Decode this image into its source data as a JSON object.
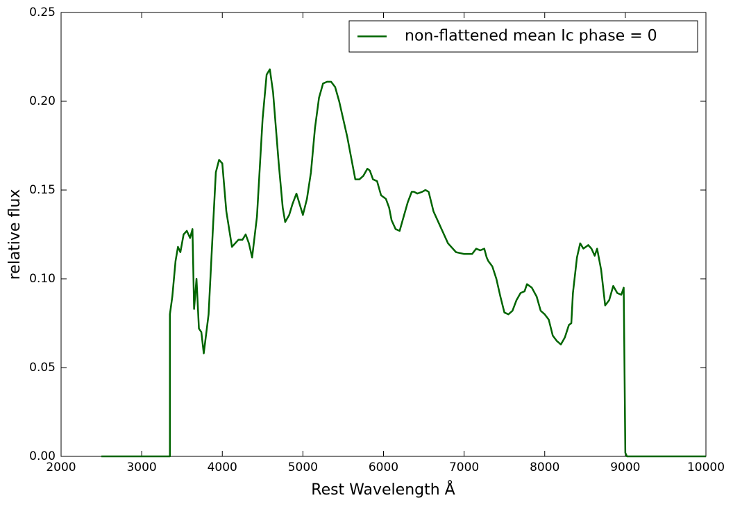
{
  "chart_data": {
    "type": "line",
    "xlabel": "Rest Wavelength Å",
    "ylabel": "relative flux",
    "xlim": [
      2000,
      10000
    ],
    "xticks": [
      2000,
      3000,
      4000,
      5000,
      6000,
      7000,
      8000,
      9000,
      10000
    ],
    "ylim": [
      0,
      0.25
    ],
    "yticks": [
      {
        "value": 0,
        "label": "0.00"
      },
      0.05,
      {
        "value": 0.1,
        "label": "0.10"
      },
      0.15,
      {
        "value": 0.2,
        "label": "0.20"
      },
      0.25
    ],
    "grid": false,
    "legend": "upper right",
    "x": [
      2500,
      3350,
      3350,
      3380,
      3420,
      3450,
      3480,
      3520,
      3560,
      3600,
      3630,
      3650,
      3680,
      3710,
      3740,
      3770,
      3830,
      3880,
      3920,
      3960,
      4000,
      4050,
      4120,
      4160,
      4200,
      4250,
      4290,
      4330,
      4370,
      4430,
      4500,
      4550,
      4590,
      4630,
      4700,
      4750,
      4780,
      4830,
      4870,
      4920,
      4960,
      5000,
      5050,
      5100,
      5150,
      5200,
      5250,
      5300,
      5350,
      5400,
      5450,
      5500,
      5550,
      5600,
      5650,
      5700,
      5750,
      5800,
      5830,
      5870,
      5920,
      5970,
      6030,
      6070,
      6100,
      6150,
      6200,
      6250,
      6300,
      6350,
      6380,
      6420,
      6480,
      6520,
      6560,
      6620,
      6700,
      6800,
      6900,
      7000,
      7100,
      7150,
      7200,
      7250,
      7280,
      7300,
      7350,
      7400,
      7450,
      7500,
      7550,
      7600,
      7650,
      7700,
      7750,
      7780,
      7840,
      7900,
      7950,
      8000,
      8050,
      8100,
      8150,
      8200,
      8250,
      8300,
      8330,
      8350,
      8400,
      8440,
      8480,
      8540,
      8580,
      8620,
      8650,
      8700,
      8750,
      8800,
      8850,
      8900,
      8950,
      8980,
      9000,
      9020,
      10000
    ],
    "series": [
      {
        "name": "non-flattened mean Ic phase = 0",
        "color": "#006400",
        "values": [
          0,
          0,
          0.08,
          0.09,
          0.11,
          0.118,
          0.115,
          0.125,
          0.127,
          0.123,
          0.128,
          0.083,
          0.1,
          0.072,
          0.07,
          0.058,
          0.08,
          0.125,
          0.16,
          0.167,
          0.165,
          0.138,
          0.118,
          0.12,
          0.122,
          0.122,
          0.125,
          0.12,
          0.112,
          0.135,
          0.19,
          0.215,
          0.218,
          0.205,
          0.165,
          0.14,
          0.132,
          0.136,
          0.142,
          0.148,
          0.142,
          0.136,
          0.145,
          0.16,
          0.185,
          0.202,
          0.21,
          0.211,
          0.211,
          0.208,
          0.2,
          0.19,
          0.18,
          0.168,
          0.156,
          0.156,
          0.158,
          0.162,
          0.161,
          0.156,
          0.155,
          0.147,
          0.145,
          0.14,
          0.133,
          0.128,
          0.127,
          0.135,
          0.143,
          0.149,
          0.149,
          0.148,
          0.149,
          0.15,
          0.149,
          0.138,
          0.13,
          0.12,
          0.115,
          0.114,
          0.114,
          0.117,
          0.116,
          0.117,
          0.112,
          0.11,
          0.107,
          0.1,
          0.09,
          0.081,
          0.08,
          0.082,
          0.088,
          0.092,
          0.093,
          0.097,
          0.095,
          0.09,
          0.082,
          0.08,
          0.077,
          0.068,
          0.065,
          0.063,
          0.067,
          0.074,
          0.075,
          0.092,
          0.112,
          0.12,
          0.117,
          0.119,
          0.117,
          0.113,
          0.117,
          0.105,
          0.085,
          0.088,
          0.096,
          0.092,
          0.091,
          0.095,
          0.002,
          0,
          0
        ]
      }
    ]
  }
}
